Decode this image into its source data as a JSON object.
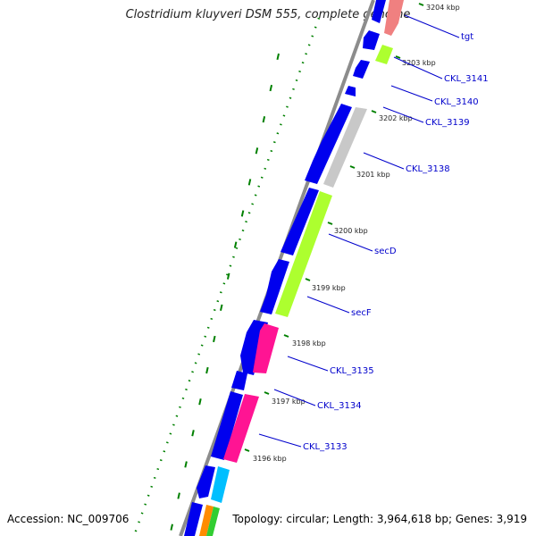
{
  "title": "Clostridium kluyveri DSM 555, complete genome",
  "footer": {
    "accession": "Accession: NC_009706",
    "summary": "Topology: circular; Length: 3,964,618 bp; Genes: 3,919"
  },
  "colors": {
    "backbone": "#8c8c8c",
    "strand_cds": "#0000ee",
    "label": "#0000cc",
    "tick": "#008000",
    "pointer": "#0000cc",
    "pink": "#ff1493",
    "green": "#adff2f",
    "gray": "#c8c8c8",
    "cyan": "#00bfff",
    "salmon": "#f08080",
    "orange": "#ff8c00"
  },
  "scale_labels": [
    "3204 kbp",
    "3203 kbp",
    "3202 kbp",
    "3201 kbp",
    "3200 kbp",
    "3199 kbp",
    "3198 kbp",
    "3197 kbp",
    "3196 kbp"
  ],
  "gene_labels": [
    "tgt",
    "CKL_3141",
    "CKL_3140",
    "CKL_3139",
    "CKL_3138",
    "secD",
    "secF",
    "CKL_3135",
    "CKL_3134",
    "CKL_3133"
  ]
}
